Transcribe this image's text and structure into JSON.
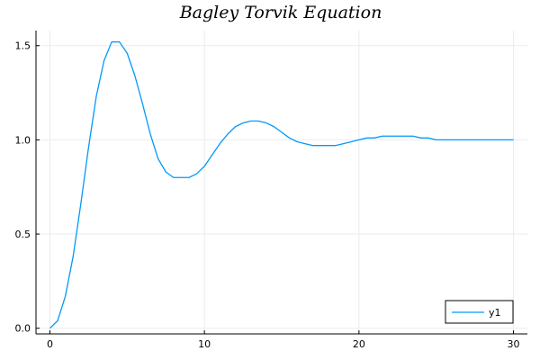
{
  "chart_data": {
    "type": "line",
    "title": "Bagley Torvik Equation",
    "xlabel": "",
    "ylabel": "",
    "xlim": [
      -0.9,
      30.9
    ],
    "ylim": [
      -0.03,
      1.58
    ],
    "x_ticks": [
      0,
      10,
      20,
      30
    ],
    "x_tick_labels": [
      "0",
      "10",
      "20",
      "30"
    ],
    "y_ticks": [
      0.0,
      0.5,
      1.0,
      1.5
    ],
    "y_tick_labels": [
      "0.0",
      "0.5",
      "1.0",
      "1.5"
    ],
    "grid": true,
    "legend_position": "bottom-right",
    "series": [
      {
        "name": "y1",
        "color": "#009af9",
        "x": [
          0,
          0.5,
          1,
          1.5,
          2,
          2.5,
          3,
          3.5,
          4,
          4.5,
          5,
          5.5,
          6,
          6.5,
          7,
          7.5,
          8,
          8.5,
          9,
          9.5,
          10,
          10.5,
          11,
          11.5,
          12,
          12.5,
          13,
          13.5,
          14,
          14.5,
          15,
          15.5,
          16,
          16.5,
          17,
          17.5,
          18,
          18.5,
          19,
          19.5,
          20,
          20.5,
          21,
          21.5,
          22,
          22.5,
          23,
          23.5,
          24,
          24.5,
          25,
          25.5,
          26,
          26.5,
          27,
          27.5,
          28,
          28.5,
          29,
          29.5,
          30
        ],
        "y": [
          0.0,
          0.04,
          0.17,
          0.38,
          0.66,
          0.96,
          1.23,
          1.42,
          1.52,
          1.52,
          1.46,
          1.34,
          1.19,
          1.03,
          0.9,
          0.83,
          0.8,
          0.8,
          0.8,
          0.82,
          0.86,
          0.92,
          0.98,
          1.03,
          1.07,
          1.09,
          1.1,
          1.1,
          1.09,
          1.07,
          1.04,
          1.01,
          0.99,
          0.98,
          0.97,
          0.97,
          0.97,
          0.97,
          0.98,
          0.99,
          1.0,
          1.01,
          1.01,
          1.02,
          1.02,
          1.02,
          1.02,
          1.02,
          1.01,
          1.01,
          1.0,
          1.0,
          1.0,
          1.0,
          1.0,
          1.0,
          1.0,
          1.0,
          1.0,
          1.0,
          1.0
        ]
      }
    ]
  }
}
